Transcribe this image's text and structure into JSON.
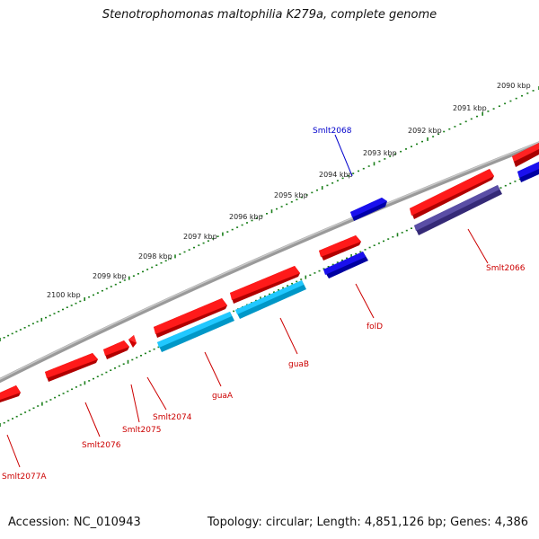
{
  "title": "Stenotrophomonas maltophilia K279a, complete genome",
  "footer": {
    "accession": "Accession: NC_010943",
    "summary": "Topology: circular; Length: 4,851,126 bp; Genes: 4,386"
  },
  "colors": {
    "forward_gene": "#ee1111",
    "reverse_gene": "#1a10e6",
    "forward_cds_light": "#00bfff",
    "reverse_cds_dark": "#4b3f8f",
    "backbone": "#777777",
    "tick": "#1b7f1b",
    "red_label": "#cc0000",
    "blue_label": "#0000cc"
  },
  "scale": {
    "labels": [
      "2090 kbp",
      "2091 kbp",
      "2092 kbp",
      "2093 kbp",
      "2094 kbp",
      "2095 kbp",
      "2096 kbp",
      "2097 kbp",
      "2098 kbp",
      "2099 kbp",
      "2100 kbp"
    ]
  },
  "genes": [
    {
      "name": "Smlt2066",
      "color": "red_label"
    },
    {
      "name": "Smlt2068",
      "color": "blue_label"
    },
    {
      "name": "folD",
      "color": "red_label"
    },
    {
      "name": "guaB",
      "color": "red_label"
    },
    {
      "name": "guaA",
      "color": "red_label"
    },
    {
      "name": "Smlt2074",
      "color": "red_label"
    },
    {
      "name": "Smlt2075",
      "color": "red_label"
    },
    {
      "name": "Smlt2076",
      "color": "red_label"
    },
    {
      "name": "Smlt2077A",
      "color": "red_label"
    }
  ]
}
